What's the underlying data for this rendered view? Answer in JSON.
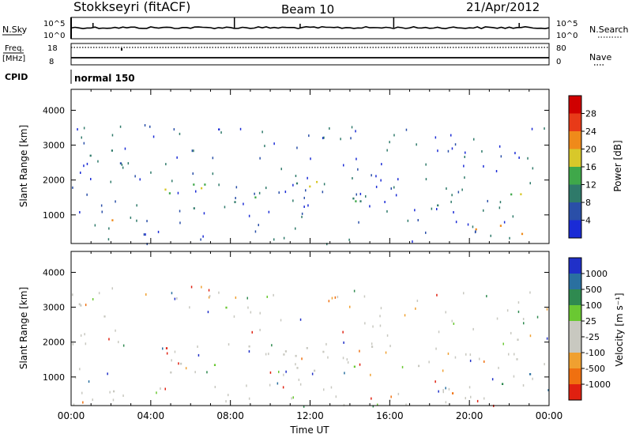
{
  "header": {
    "station": "Stokkseyri (fitACF)",
    "beam": "Beam 10",
    "date": "21/Apr/2012"
  },
  "strip_panels": {
    "nsky_label": "N.Sky",
    "nsearch_label": "N.Search",
    "nsky_ticks": [
      "10^5",
      "10^0"
    ],
    "nsearch_ticks": [
      "10^5",
      "10^0"
    ],
    "freq_label": "Freq.",
    "freq_unit": "[MHz]",
    "freq_ticks": [
      "18",
      "8"
    ],
    "nave_label": "Nave",
    "nave_ticks": [
      "80",
      "0"
    ],
    "cpid_label": "CPID",
    "cpid_value": "normal 150"
  },
  "colors": {
    "gray_scatter": "#c8c8c0",
    "axis": "#000000"
  },
  "chart_data": [
    {
      "type": "heatmap",
      "name": "power",
      "ylabel": "Slant Range [km]",
      "xlabel": "",
      "ylim": [
        180,
        4600
      ],
      "yticks": [
        "1000",
        "2000",
        "3000",
        "4000"
      ],
      "colorbar_label": "Power [dB]",
      "colorbar_ticks": [
        "4",
        "8",
        "12",
        "16",
        "20",
        "24",
        "28"
      ],
      "colorbar_colors": [
        "#1a2bd6",
        "#2a4fa8",
        "#2f7a6a",
        "#3fa84a",
        "#d8c82a",
        "#ef8a1a",
        "#e83a18",
        "#d00000"
      ],
      "scatter_regions": [
        {
          "t0": 0.3,
          "t1": 2.8,
          "r0": 2200,
          "r1": 3200,
          "level": 2
        },
        {
          "t0": 0.2,
          "t1": 3.0,
          "r0": 600,
          "r1": 900,
          "level": 4
        },
        {
          "t0": 4.5,
          "t1": 6.0,
          "r0": 1300,
          "r1": 2100,
          "level": 5
        },
        {
          "t0": 4.8,
          "t1": 18.6,
          "r0": 1100,
          "r1": 2000,
          "level": 3
        },
        {
          "t0": 6.8,
          "t1": 7.8,
          "r0": 2700,
          "r1": 3500,
          "level": 1
        },
        {
          "t0": 18.8,
          "t1": 24.0,
          "r0": 300,
          "r1": 900,
          "level": 4
        },
        {
          "t0": 22.0,
          "t1": 24.0,
          "r0": 1500,
          "r1": 2400,
          "level": 3
        }
      ]
    },
    {
      "type": "heatmap",
      "name": "velocity",
      "ylabel": "Slant Range [km]",
      "xlabel": "Time UT",
      "ylim": [
        180,
        4600
      ],
      "yticks": [
        "1000",
        "2000",
        "3000",
        "4000"
      ],
      "xticks": [
        "00:00",
        "04:00",
        "08:00",
        "12:00",
        "16:00",
        "20:00",
        "00:00"
      ],
      "xlim": [
        0,
        24
      ],
      "colorbar_label": "Velocity [m s⁻¹]",
      "colorbar_ticks": [
        "1000",
        "500",
        "100",
        "25",
        "-25",
        "-100",
        "-500",
        "-1000"
      ],
      "colorbar_colors": [
        "#2030c8",
        "#2a70a0",
        "#2f8a50",
        "#6ac832",
        "#c8c8c0",
        "#c8c8c0",
        "#f0a030",
        "#f07010",
        "#e02010"
      ],
      "scatter_regions": [
        {
          "t0": 0.3,
          "t1": 2.8,
          "r0": 2200,
          "r1": 3200,
          "level": 4
        },
        {
          "t0": 0.2,
          "t1": 3.0,
          "r0": 600,
          "r1": 900,
          "level": 4
        },
        {
          "t0": 4.5,
          "t1": 6.0,
          "r0": 1300,
          "r1": 2100,
          "level": 7
        },
        {
          "t0": 4.8,
          "t1": 18.6,
          "r0": 1100,
          "r1": 2000,
          "level": 4
        },
        {
          "t0": 6.8,
          "t1": 7.8,
          "r0": 2700,
          "r1": 3500,
          "level": 3
        },
        {
          "t0": 18.8,
          "t1": 21.0,
          "r0": 300,
          "r1": 900,
          "level": 7
        },
        {
          "t0": 21.0,
          "t1": 24.0,
          "r0": 300,
          "r1": 1200,
          "level": 2
        },
        {
          "t0": 22.0,
          "t1": 24.0,
          "r0": 1500,
          "r1": 2400,
          "level": 4
        }
      ]
    }
  ]
}
